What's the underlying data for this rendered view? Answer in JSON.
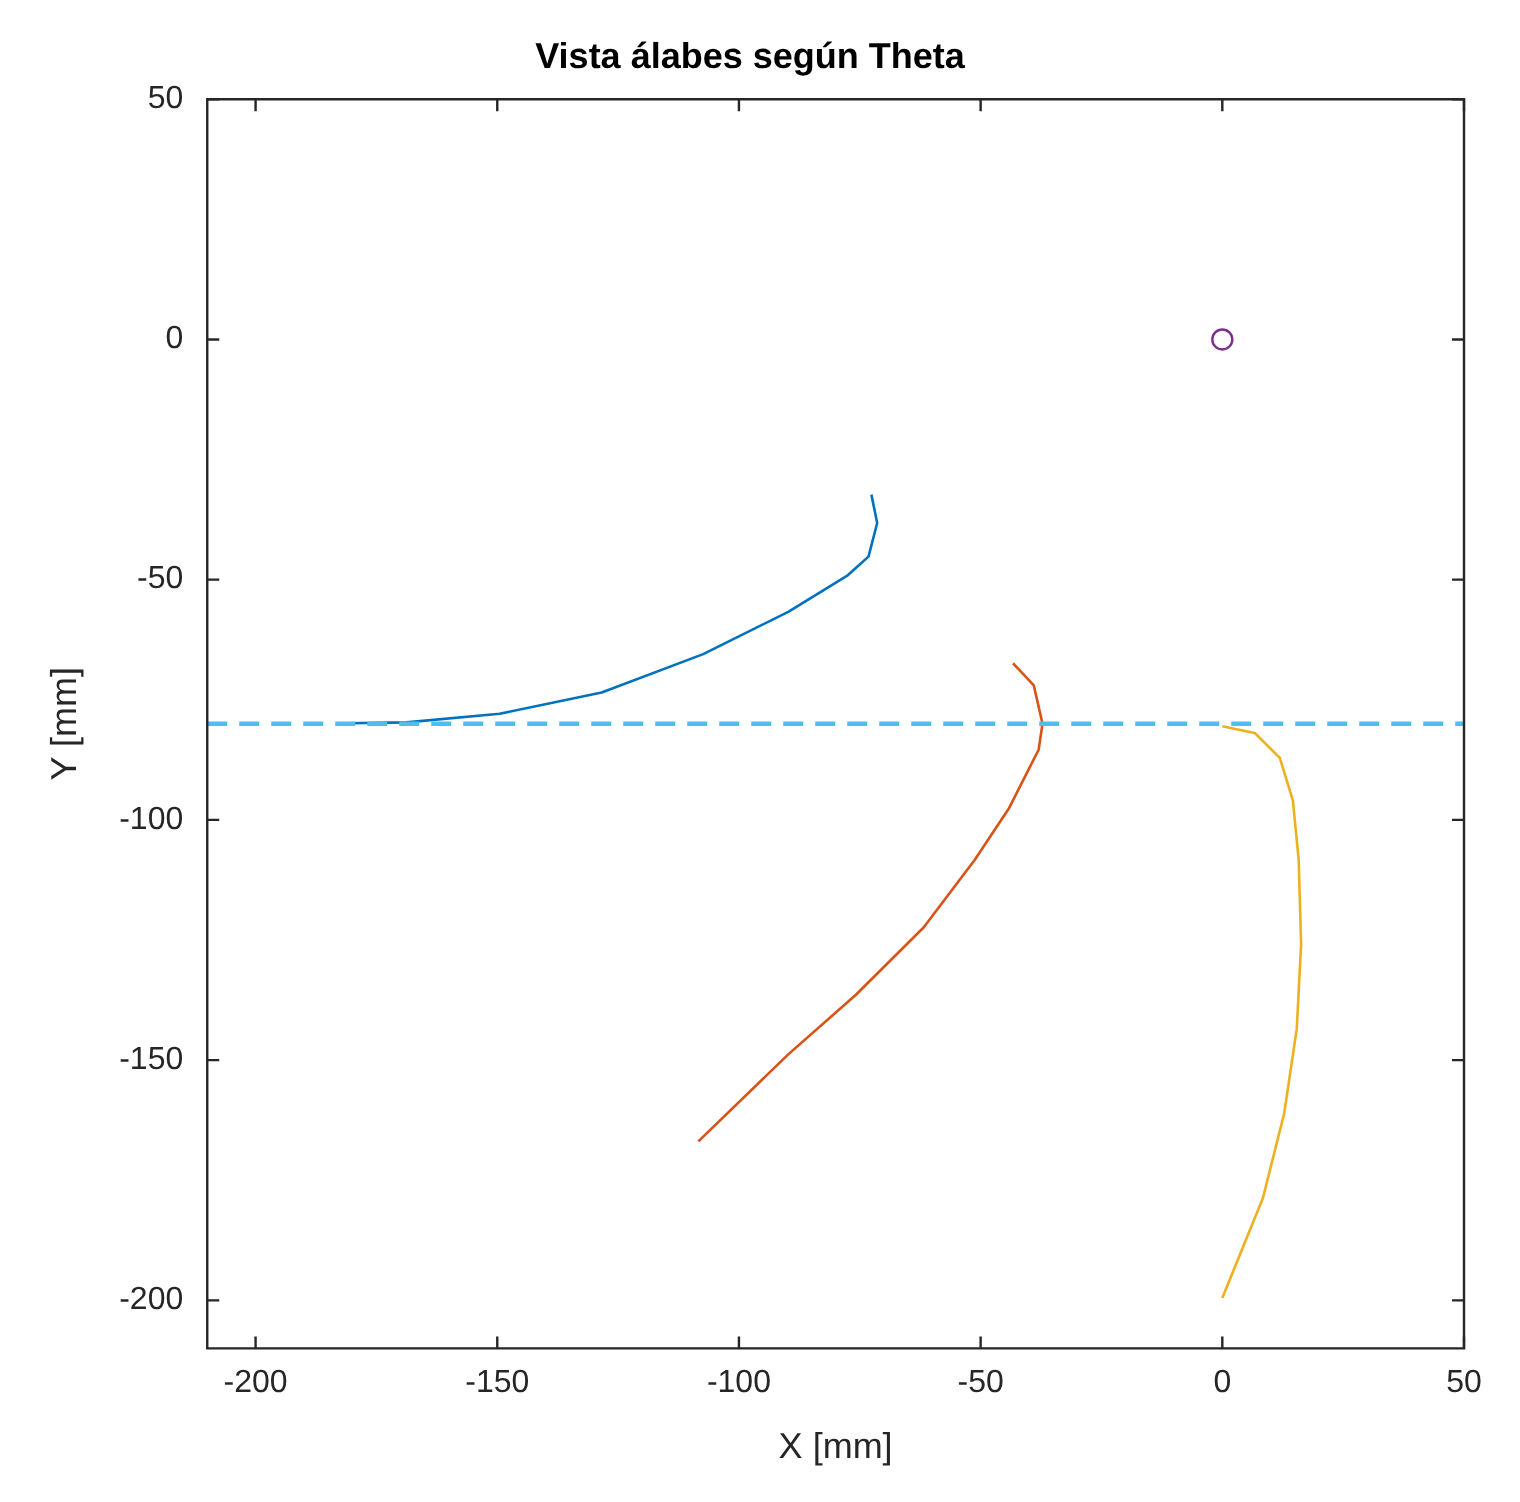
{
  "chart_data": {
    "type": "line",
    "title": "Vista álabes según Theta",
    "xlabel": "X [mm]",
    "ylabel": "Y [mm]",
    "xlim": [
      -210,
      50
    ],
    "ylim": [
      -210,
      50
    ],
    "xticks": [
      -200,
      -150,
      -100,
      -50,
      0,
      50
    ],
    "yticks": [
      -200,
      -150,
      -100,
      -50,
      0,
      50
    ],
    "grid": false,
    "legend": false,
    "series": [
      {
        "color": "#0072bd",
        "x": [
          -72.6,
          -71.4,
          -73.2,
          -77.5,
          -89.8,
          -107.4,
          -128.4,
          -149.5,
          -168.8,
          -181
        ],
        "values": [
          -32.3,
          -38.2,
          -45.2,
          -49.1,
          -56.7,
          -65.5,
          -73.5,
          -77.9,
          -79.7,
          -79.9
        ]
      },
      {
        "color": "#d95319",
        "x": [
          -43.3,
          -39,
          -37.2,
          -38,
          -44.2,
          -51.2,
          -61.8,
          -75.8,
          -89.8,
          -108.4
        ],
        "values": [
          -67.4,
          -72,
          -80,
          -85.4,
          -97.7,
          -108.3,
          -122.4,
          -136.4,
          -148.8,
          -166.9
        ]
      },
      {
        "color": "#edb120",
        "x": [
          0,
          6.7,
          11.9,
          14.6,
          15.8,
          16.3,
          15.4,
          12.8,
          8.4,
          0
        ],
        "values": [
          -80.5,
          -81.9,
          -87.1,
          -96,
          -108.3,
          -125.9,
          -143.5,
          -161.1,
          -178.7,
          -199.5
        ]
      },
      {
        "type": "scatter",
        "color": "#7e2f8e",
        "marker": "circle",
        "x": [
          0
        ],
        "values": [
          0
        ]
      }
    ],
    "ref_lines": [
      {
        "axis": "y",
        "value": -80,
        "color": "#4dbeee",
        "line_style": "dashed"
      }
    ]
  }
}
